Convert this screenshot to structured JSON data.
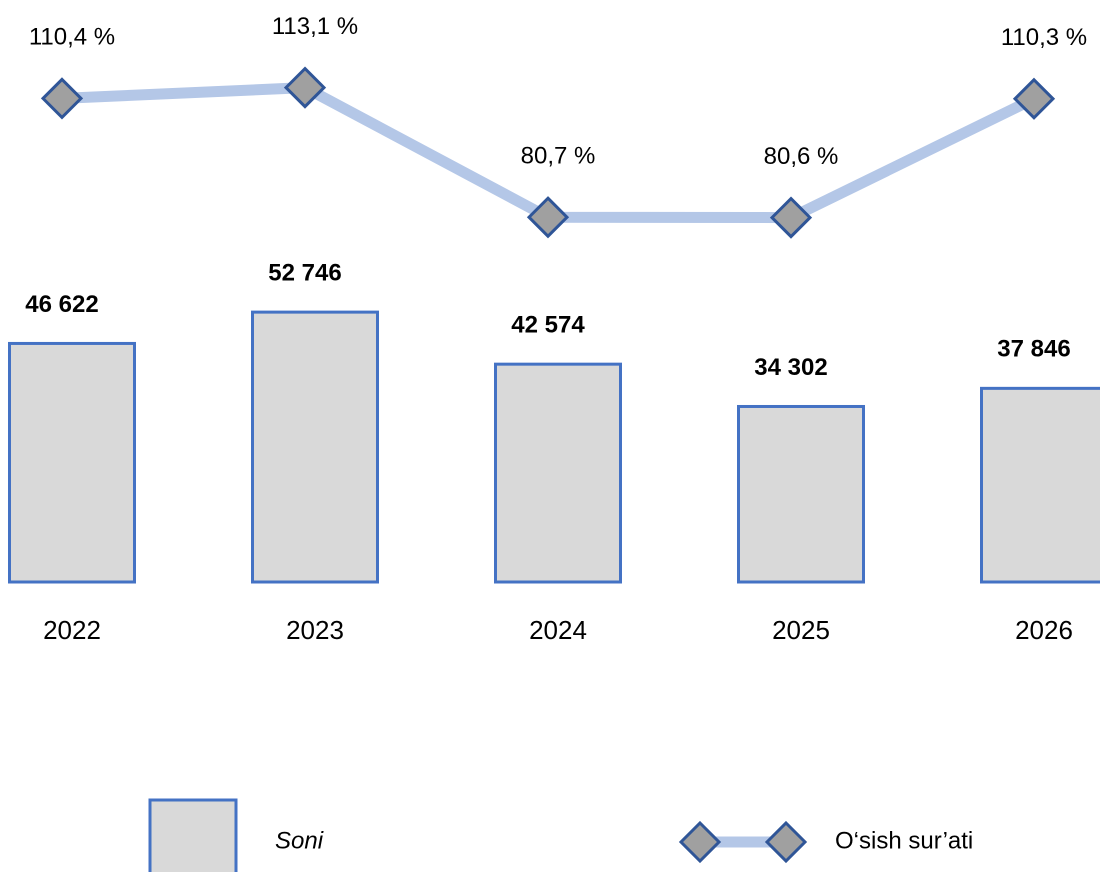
{
  "chart_data": {
    "type": "bar_line",
    "categories": [
      "2022",
      "2023",
      "2024",
      "2025",
      "2026"
    ],
    "series": [
      {
        "name": "Soni",
        "type": "bar",
        "color": "#d9d9d9",
        "edge_color": "#4472c4",
        "values": [
          46622,
          52746,
          42574,
          34302,
          37846
        ],
        "value_labels": [
          "46 622",
          "52 746",
          "42 574",
          "34 302",
          "37 846"
        ]
      },
      {
        "name": "O‘sish sur’ati",
        "type": "line",
        "axis": "y2",
        "color": "#b4c7e7",
        "marker_color": "#a0a0a0",
        "marker_edge": "#2f5597",
        "values": [
          110.4,
          113.1,
          80.7,
          80.6,
          110.3
        ],
        "value_labels": [
          "110,4 %",
          "113,1 %",
          "80,7 %",
          "80,6 %",
          "110,3 %"
        ]
      }
    ],
    "ylim": [
      0,
      60000
    ],
    "y2lim": [
      70,
      120
    ],
    "legend": "bottom"
  }
}
